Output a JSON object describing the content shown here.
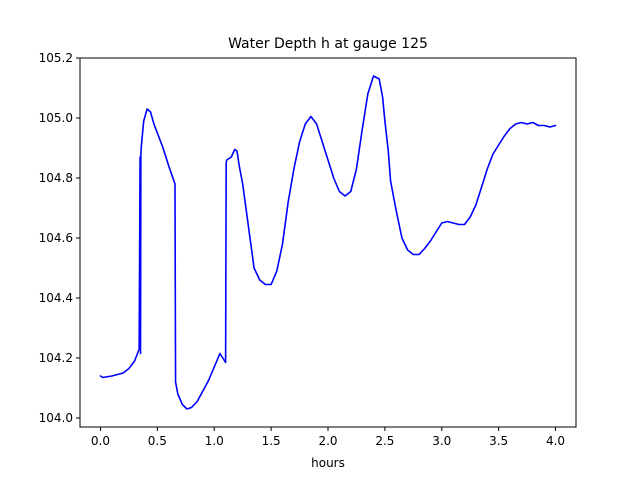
{
  "chart_data": {
    "type": "line",
    "title": "Water Depth h at gauge 125",
    "xlabel": "hours",
    "ylabel": "",
    "xlim": [
      -0.18,
      4.18
    ],
    "ylim": [
      103.97,
      105.2
    ],
    "xticks": [
      0.0,
      0.5,
      1.0,
      1.5,
      2.0,
      2.5,
      3.0,
      3.5,
      4.0
    ],
    "xtick_labels": [
      "0.0",
      "0.5",
      "1.0",
      "1.5",
      "2.0",
      "2.5",
      "3.0",
      "3.5",
      "4.0"
    ],
    "yticks": [
      104.0,
      104.2,
      104.4,
      104.6,
      104.8,
      105.0,
      105.2
    ],
    "ytick_labels": [
      "104.0",
      "104.2",
      "104.4",
      "104.6",
      "104.8",
      "105.0",
      "105.2"
    ],
    "grid": false,
    "series": [
      {
        "color": "#0000ff",
        "x": [
          0.0,
          0.02,
          0.1,
          0.2,
          0.25,
          0.3,
          0.34,
          0.348,
          0.352,
          0.355,
          0.36,
          0.38,
          0.41,
          0.44,
          0.47,
          0.5,
          0.55,
          0.6,
          0.655,
          0.66,
          0.68,
          0.72,
          0.76,
          0.8,
          0.85,
          0.9,
          0.95,
          1.0,
          1.05,
          1.1,
          1.105,
          1.11,
          1.15,
          1.18,
          1.2,
          1.22,
          1.25,
          1.3,
          1.35,
          1.4,
          1.45,
          1.5,
          1.55,
          1.6,
          1.65,
          1.7,
          1.75,
          1.8,
          1.85,
          1.9,
          1.95,
          2.0,
          2.05,
          2.1,
          2.15,
          2.2,
          2.25,
          2.3,
          2.35,
          2.4,
          2.45,
          2.48,
          2.5,
          2.53,
          2.55,
          2.6,
          2.65,
          2.7,
          2.75,
          2.8,
          2.85,
          2.9,
          2.95,
          3.0,
          3.05,
          3.1,
          3.15,
          3.2,
          3.25,
          3.3,
          3.35,
          3.4,
          3.45,
          3.5,
          3.55,
          3.6,
          3.65,
          3.7,
          3.75,
          3.8,
          3.85,
          3.9,
          3.95,
          4.0
        ],
        "y": [
          104.14,
          104.135,
          104.14,
          104.15,
          104.165,
          104.19,
          104.23,
          104.87,
          104.215,
          104.88,
          104.91,
          104.99,
          105.03,
          105.02,
          104.98,
          104.95,
          104.9,
          104.84,
          104.78,
          104.12,
          104.08,
          104.045,
          104.03,
          104.035,
          104.055,
          104.09,
          104.125,
          104.17,
          104.215,
          104.185,
          104.85,
          104.86,
          104.87,
          104.895,
          104.89,
          104.84,
          104.78,
          104.64,
          104.5,
          104.46,
          104.445,
          104.445,
          104.49,
          104.58,
          104.72,
          104.83,
          104.92,
          104.98,
          105.005,
          104.98,
          104.92,
          104.86,
          104.8,
          104.755,
          104.74,
          104.755,
          104.83,
          104.96,
          105.08,
          105.14,
          105.13,
          105.07,
          104.99,
          104.89,
          104.79,
          104.69,
          104.6,
          104.56,
          104.545,
          104.545,
          104.565,
          104.59,
          104.62,
          104.65,
          104.655,
          104.65,
          104.645,
          104.645,
          104.67,
          104.71,
          104.77,
          104.83,
          104.88,
          104.91,
          104.94,
          104.965,
          104.98,
          104.985,
          104.98,
          104.985,
          104.975,
          104.975,
          104.97,
          104.975
        ]
      }
    ]
  }
}
